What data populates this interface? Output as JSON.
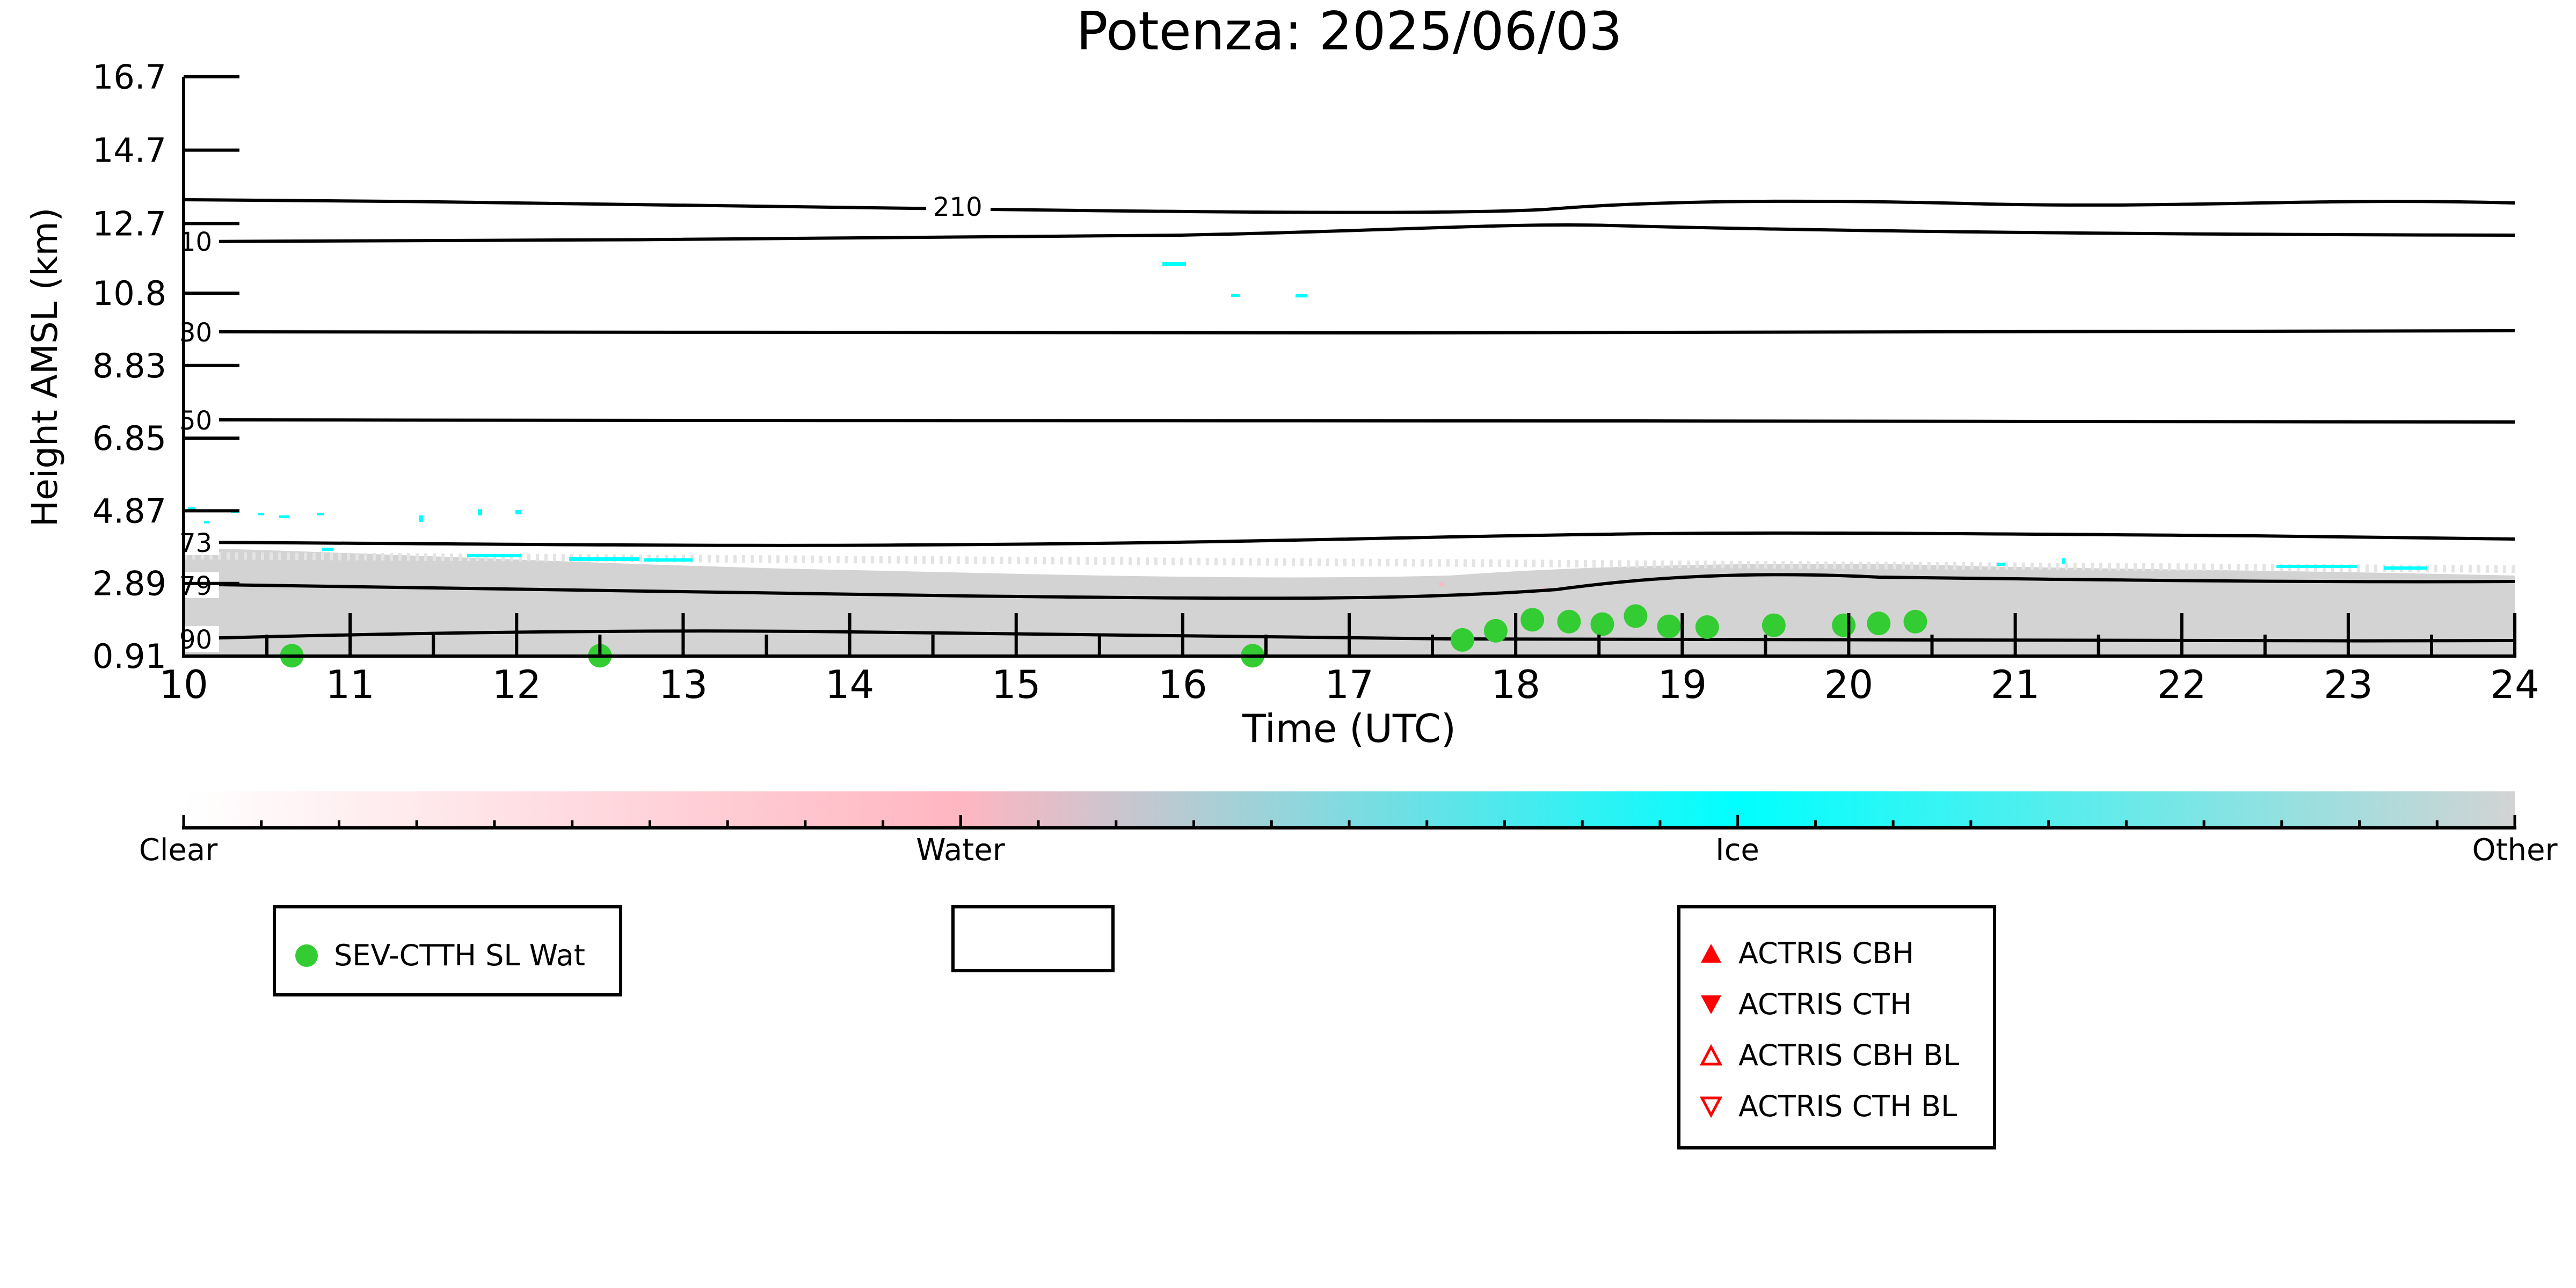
{
  "chart_data": {
    "type": "scatter",
    "title": "Potenza: 2025/06/03",
    "xlabel": "Time (UTC)",
    "ylabel": "Height AMSL (km)",
    "xlim": [
      10,
      24
    ],
    "ylim": [
      0.91,
      16.7
    ],
    "x_ticks": [
      "10",
      "11",
      "12",
      "13",
      "14",
      "15",
      "16",
      "17",
      "18",
      "19",
      "20",
      "21",
      "22",
      "23",
      "24"
    ],
    "y_ticks": [
      "0.91",
      "2.89",
      "4.87",
      "6.85",
      "8.83",
      "10.8",
      "12.7",
      "14.7",
      "16.7"
    ],
    "contour_labels": [
      "210",
      "10",
      "30",
      "50",
      "73",
      "79",
      "90"
    ],
    "colorbar": {
      "labels": [
        "Clear",
        "Water",
        "Ice",
        "Other"
      ],
      "colors": [
        "#ffffff",
        "#ffb6c1",
        "#00ffff",
        "#d3d3d3"
      ]
    },
    "series": [
      {
        "name": "SEV-CTTH SL Wat",
        "color": "#33cc33",
        "x": [
          10.65,
          12.5,
          16.42,
          17.68,
          17.88,
          18.1,
          18.32,
          18.52,
          18.72,
          18.92,
          19.15,
          19.55,
          19.97,
          20.18,
          20.4
        ],
        "y": [
          0.92,
          0.92,
          0.92,
          1.35,
          1.6,
          1.9,
          1.85,
          1.78,
          2.0,
          1.72,
          1.7,
          1.75,
          1.75,
          1.8,
          1.85
        ]
      }
    ]
  },
  "legends": {
    "sev": {
      "label": "SEV-CTTH SL Wat",
      "color": "#33cc33"
    },
    "actris": [
      {
        "label": "ACTRIS CBH",
        "symbol": "triangle-up-filled",
        "color": "#ff0000"
      },
      {
        "label": "ACTRIS CTH",
        "symbol": "triangle-down-filled",
        "color": "#ff0000"
      },
      {
        "label": "ACTRIS CBH BL",
        "symbol": "triangle-up-open",
        "color": "#ff0000"
      },
      {
        "label": "ACTRIS CTH BL",
        "symbol": "triangle-down-open",
        "color": "#ff0000"
      }
    ]
  }
}
